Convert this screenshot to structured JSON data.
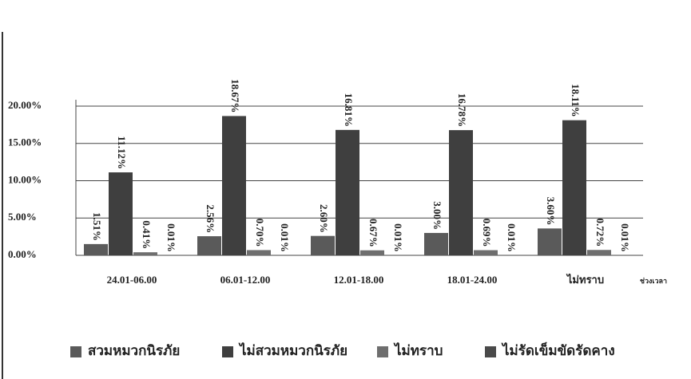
{
  "chart_data": {
    "type": "bar",
    "categories": [
      "24.01-06.00",
      "06.01-12.00",
      "12.01-18.00",
      "18.01-24.00",
      "ไม่ทราบ"
    ],
    "x_label": "ช่วงเวลา",
    "series": [
      {
        "name": "สวมหมวกนิรภัย",
        "color": "#5a5a5a",
        "values": [
          1.51,
          2.56,
          2.6,
          3.0,
          3.6
        ],
        "value_labels": [
          "1.51%",
          "2.56%",
          "2.60%",
          "3.00%",
          "3.60%"
        ]
      },
      {
        "name": "ไม่สวมหมวกนิรภัย",
        "color": "#3f3f3f",
        "values": [
          11.12,
          18.67,
          16.81,
          16.78,
          18.11
        ],
        "value_labels": [
          "11.12%",
          "18.67%",
          "16.81%",
          "16.78%",
          "18.11%"
        ]
      },
      {
        "name": "ไม่ทราบ",
        "color": "#6e6e6e",
        "values": [
          0.41,
          0.7,
          0.67,
          0.69,
          0.72
        ],
        "value_labels": [
          "0.41%",
          "0.70%",
          "0.67%",
          "0.69%",
          "0.72%"
        ]
      },
      {
        "name": "ไม่รัดเข็มขัดรัดคาง",
        "color": "#4a4a4a",
        "values": [
          0.01,
          0.01,
          0.01,
          0.01,
          0.01
        ],
        "value_labels": [
          "0.01%",
          "0.01%",
          "0.01%",
          "0.01%",
          "0.01%"
        ]
      }
    ],
    "ylim": [
      0,
      20
    ],
    "yticks": [
      {
        "value": 0,
        "label": "0.00%"
      },
      {
        "value": 5,
        "label": "5.00%"
      },
      {
        "value": 10,
        "label": "10.00%"
      },
      {
        "value": 15,
        "label": "15.00%"
      },
      {
        "value": 20,
        "label": "20.00%"
      }
    ],
    "grid": true,
    "legend": "bottom"
  }
}
